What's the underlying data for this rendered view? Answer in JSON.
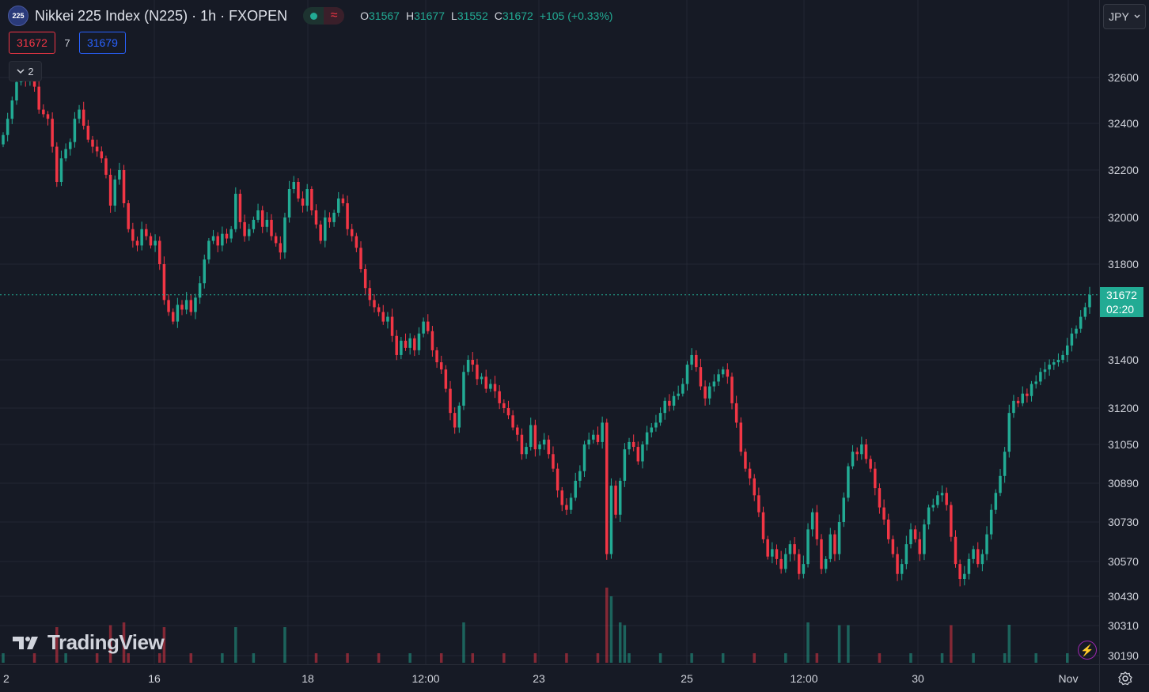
{
  "header": {
    "symbol_badge": "225",
    "title": "Nikkei 225 Index (N225) · 1h · FXOPEN",
    "ohlc": {
      "o_label": "O",
      "o": "31567",
      "h_label": "H",
      "h": "31677",
      "l_label": "L",
      "l": "31552",
      "c_label": "C",
      "c": "31672",
      "change": "+105 (+0.33%)"
    }
  },
  "trade": {
    "sell": "31672",
    "spread": "7",
    "buy": "31679"
  },
  "indicators_toggle": {
    "count": "2"
  },
  "currency": "JPY",
  "last_price_tag": {
    "price": "31672",
    "countdown": "02:20"
  },
  "watermark": "TradingView",
  "colors": {
    "up": "#22ab94",
    "down": "#f23645",
    "background": "#161a25",
    "grid": "#232734"
  },
  "chart_data": {
    "type": "candlestick",
    "title": "Nikkei 225 Index (N225)",
    "interval": "1h",
    "y_ticks": [
      32600,
      32400,
      32200,
      32000,
      31800,
      31400,
      31200,
      31050,
      30890,
      30730,
      30570,
      30430,
      30310,
      30190
    ],
    "y_tick_labels": [
      "32600",
      "32400",
      "32200",
      "32000",
      "31800",
      "31400",
      "31200",
      "31050",
      "30890",
      "30730",
      "30570",
      "30430",
      "30310",
      "30190"
    ],
    "x_tick_labels": [
      "2",
      "16",
      "18",
      "12:00",
      "23",
      "25",
      "12:00",
      "30",
      "Nov"
    ],
    "last_price": 31672,
    "grid": true,
    "close_series": [
      32350,
      32420,
      32500,
      32580,
      32620,
      32590,
      32640,
      32560,
      32460,
      32440,
      32420,
      32300,
      32150,
      32250,
      32290,
      32320,
      32420,
      32460,
      32390,
      32330,
      32300,
      32280,
      32250,
      32180,
      32050,
      32160,
      32200,
      32060,
      31950,
      31900,
      31880,
      31950,
      31920,
      31880,
      31900,
      31800,
      31650,
      31600,
      31560,
      31630,
      31610,
      31650,
      31600,
      31660,
      31720,
      31820,
      31900,
      31920,
      31880,
      31930,
      31910,
      31950,
      32100,
      31980,
      31920,
      31950,
      31990,
      32030,
      31960,
      31990,
      31920,
      31890,
      31850,
      32000,
      32120,
      32150,
      32080,
      32050,
      32120,
      32030,
      31970,
      31900,
      32000,
      31980,
      32020,
      32080,
      32060,
      31950,
      31920,
      31870,
      31780,
      31700,
      31650,
      31620,
      31600,
      31560,
      31580,
      31500,
      31420,
      31480,
      31450,
      31490,
      31440,
      31510,
      31560,
      31520,
      31440,
      31390,
      31360,
      31280,
      31180,
      31120,
      31210,
      31350,
      31400,
      31380,
      31320,
      31330,
      31280,
      31300,
      31270,
      31220,
      31200,
      31170,
      31120,
      31090,
      31010,
      31040,
      31130,
      31030,
      31050,
      31070,
      31010,
      30950,
      30860,
      30800,
      30780,
      30830,
      30900,
      30940,
      31050,
      31070,
      31090,
      31060,
      31140,
      30600,
      30880,
      30760,
      30900,
      31030,
      31060,
      31040,
      30980,
      31050,
      31100,
      31120,
      31140,
      31180,
      31230,
      31210,
      31250,
      31260,
      31300,
      31380,
      31420,
      31370,
      31290,
      31240,
      31290,
      31310,
      31340,
      31360,
      31330,
      31220,
      31140,
      31020,
      30950,
      30910,
      30840,
      30770,
      30660,
      30590,
      30620,
      30580,
      30540,
      30600,
      30640,
      30600,
      30520,
      30560,
      30700,
      30770,
      30660,
      30540,
      30580,
      30680,
      30600,
      30730,
      30830,
      30960,
      31020,
      31010,
      31050,
      30990,
      30950,
      30870,
      30790,
      30740,
      30660,
      30600,
      30520,
      30560,
      30640,
      30700,
      30660,
      30600,
      30720,
      30790,
      30800,
      30840,
      30850,
      30800,
      30670,
      30560,
      30500,
      30520,
      30580,
      30620,
      30560,
      30600,
      30680,
      30780,
      30850,
      30920,
      31020,
      31180,
      31230,
      31220,
      31260,
      31250,
      31300,
      31310,
      31350,
      31360,
      31380,
      31390,
      31400,
      31420,
      31460,
      31510,
      31530,
      31580,
      31620,
      31672
    ]
  }
}
